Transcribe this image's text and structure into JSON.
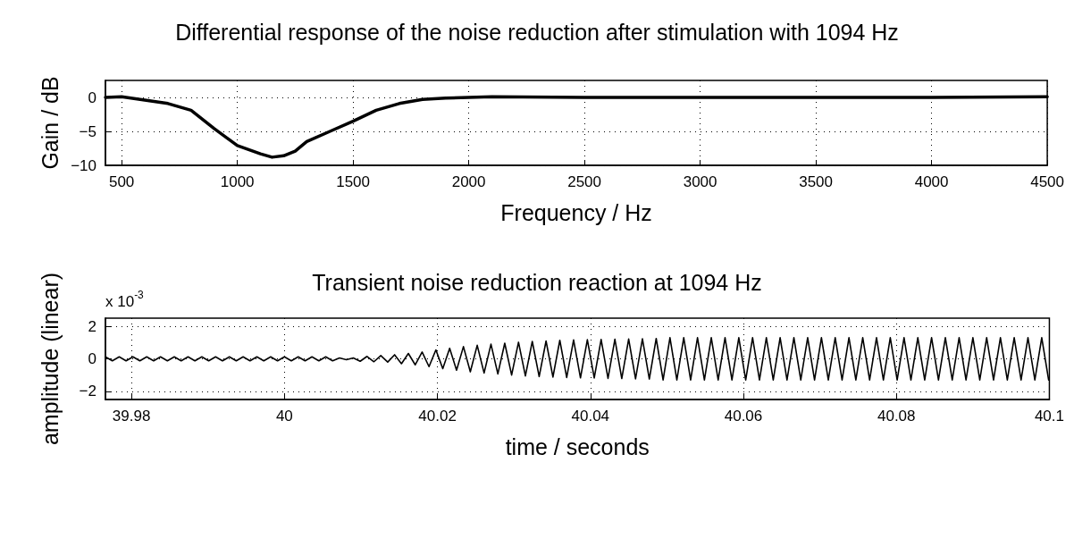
{
  "chart_data": [
    {
      "type": "line",
      "title": "Differential response of the noise reduction after stimulation with 1094 Hz",
      "xlabel": "Frequency / Hz",
      "ylabel": "Gain / dB",
      "x": [
        430,
        500,
        600,
        700,
        800,
        900,
        1000,
        1100,
        1150,
        1200,
        1250,
        1300,
        1400,
        1500,
        1600,
        1700,
        1800,
        1900,
        2000,
        2100,
        2500,
        3000,
        3500,
        4000,
        4500
      ],
      "series": [
        {
          "color": "#000000",
          "values": [
            0,
            0.1,
            -0.4,
            -0.9,
            -1.9,
            -4.6,
            -7.1,
            -8.3,
            -8.8,
            -8.6,
            -7.9,
            -6.5,
            -5.0,
            -3.5,
            -1.9,
            -0.9,
            -0.3,
            -0.1,
            0,
            0.1,
            0,
            0,
            0,
            0,
            0.1
          ]
        }
      ],
      "xlim": [
        430,
        4500
      ],
      "xticks": [
        500,
        1000,
        1500,
        2000,
        2500,
        3000,
        3500,
        4000,
        4500
      ],
      "ylim": [
        -10,
        2.5
      ],
      "yticks": [
        -10,
        -5,
        0
      ],
      "grid": true,
      "marker": "none",
      "line_style": "solid"
    },
    {
      "type": "line",
      "title": "Transient noise reduction reaction at 1094 Hz",
      "xlabel": "time / seconds",
      "ylabel": "amplitude (linear)",
      "annotations": [
        "x 10$^{-3}$"
      ],
      "x": [
        39.9766,
        39.9775,
        39.9784,
        39.9793,
        39.9802,
        39.9811,
        39.982,
        39.9829,
        39.9838,
        39.9847,
        39.9856,
        39.9865,
        39.9874,
        39.9883,
        39.9892,
        39.9901,
        39.991,
        39.9919,
        39.9928,
        39.9937,
        39.9946,
        39.9955,
        39.9964,
        39.9973,
        39.9982,
        39.9991,
        40.0,
        40.0009,
        40.0018,
        40.0027,
        40.0036,
        40.0045,
        40.0054,
        40.0063,
        40.0072,
        40.0081,
        40.009,
        40.0099,
        40.0108,
        40.0117,
        40.0126,
        40.0135,
        40.0144,
        40.0153,
        40.0162,
        40.0171,
        40.018,
        40.0189,
        40.0198,
        40.0207,
        40.0216,
        40.0225,
        40.0234,
        40.0243,
        40.0252,
        40.0261,
        40.027,
        40.0279,
        40.0288,
        40.0297,
        40.0306,
        40.0315,
        40.0324,
        40.0333,
        40.0342,
        40.0351,
        40.036,
        40.0369,
        40.0378,
        40.0387,
        40.0396,
        40.0405,
        40.0414,
        40.0423,
        40.0432,
        40.0441,
        40.045,
        40.0459,
        40.0468,
        40.0477,
        40.0486,
        40.0495,
        40.0504,
        40.0513,
        40.0522,
        40.0531,
        40.054,
        40.0549,
        40.0558,
        40.0567,
        40.0576,
        40.0585,
        40.0594,
        40.0603,
        40.0612,
        40.0621,
        40.063,
        40.0639,
        40.0648,
        40.0657,
        40.0666,
        40.0675,
        40.0684,
        40.0693,
        40.0702,
        40.0711,
        40.072,
        40.0729,
        40.0738,
        40.0747,
        40.0756,
        40.0765,
        40.0774,
        40.0783,
        40.0792,
        40.0801,
        40.081,
        40.0819,
        40.0828,
        40.0837,
        40.0846,
        40.0855,
        40.0864,
        40.0873,
        40.0882,
        40.0891,
        40.09,
        40.0909,
        40.0918,
        40.0927,
        40.0936,
        40.0945,
        40.0954,
        40.0963,
        40.0972,
        40.0981,
        40.099,
        40.0999
      ],
      "series": [
        {
          "color": "#000000",
          "values": [
            0.12,
            -0.12,
            0.12,
            -0.12,
            0.12,
            -0.12,
            0.12,
            -0.12,
            0.12,
            -0.12,
            0.12,
            -0.12,
            0.12,
            -0.12,
            0.12,
            -0.12,
            0.12,
            -0.12,
            0.12,
            -0.12,
            0.12,
            -0.12,
            0.12,
            -0.12,
            0.12,
            -0.12,
            0.12,
            -0.12,
            0.12,
            -0.12,
            0.12,
            -0.12,
            0.12,
            -0.12,
            0.05,
            -0.05,
            0.05,
            -0.15,
            0.15,
            -0.18,
            0.2,
            -0.2,
            0.25,
            -0.3,
            0.33,
            -0.37,
            0.42,
            -0.48,
            0.55,
            -0.6,
            0.65,
            -0.7,
            0.75,
            -0.8,
            0.83,
            -0.87,
            0.9,
            -0.93,
            0.96,
            -1.0,
            1.02,
            -1.05,
            1.07,
            -1.09,
            1.1,
            -1.12,
            1.14,
            -1.15,
            1.16,
            -1.17,
            1.18,
            -1.18,
            1.19,
            -1.2,
            1.2,
            -1.21,
            1.22,
            -1.23,
            1.23,
            -1.24,
            1.25,
            -1.3,
            1.3,
            -1.3,
            1.3,
            -1.3,
            1.3,
            -1.3,
            1.3,
            -1.3,
            1.3,
            -1.3,
            1.3,
            -1.3,
            1.3,
            -1.3,
            1.3,
            -1.3,
            1.3,
            -1.3,
            1.3,
            -1.3,
            1.3,
            -1.3,
            1.3,
            -1.3,
            1.3,
            -1.3,
            1.3,
            -1.3,
            1.3,
            -1.3,
            1.3,
            -1.3,
            1.3,
            -1.3,
            1.3,
            -1.3,
            1.3,
            -1.3,
            1.3,
            -1.3,
            1.3,
            -1.3,
            1.3,
            -1.3,
            1.3,
            -1.3,
            1.3,
            -1.3,
            1.3,
            -1.3,
            1.3,
            -1.3,
            1.3,
            -1.3,
            1.3,
            -1.3
          ]
        }
      ],
      "xlim": [
        39.9766,
        40.1
      ],
      "xticks": [
        39.98,
        40,
        40.02,
        40.04,
        40.06,
        40.08,
        40.1
      ],
      "ylim": [
        -2.5,
        2.5
      ],
      "yticks": [
        -2,
        0,
        2
      ],
      "grid": true,
      "marker": "none",
      "line_style": "solid"
    }
  ]
}
